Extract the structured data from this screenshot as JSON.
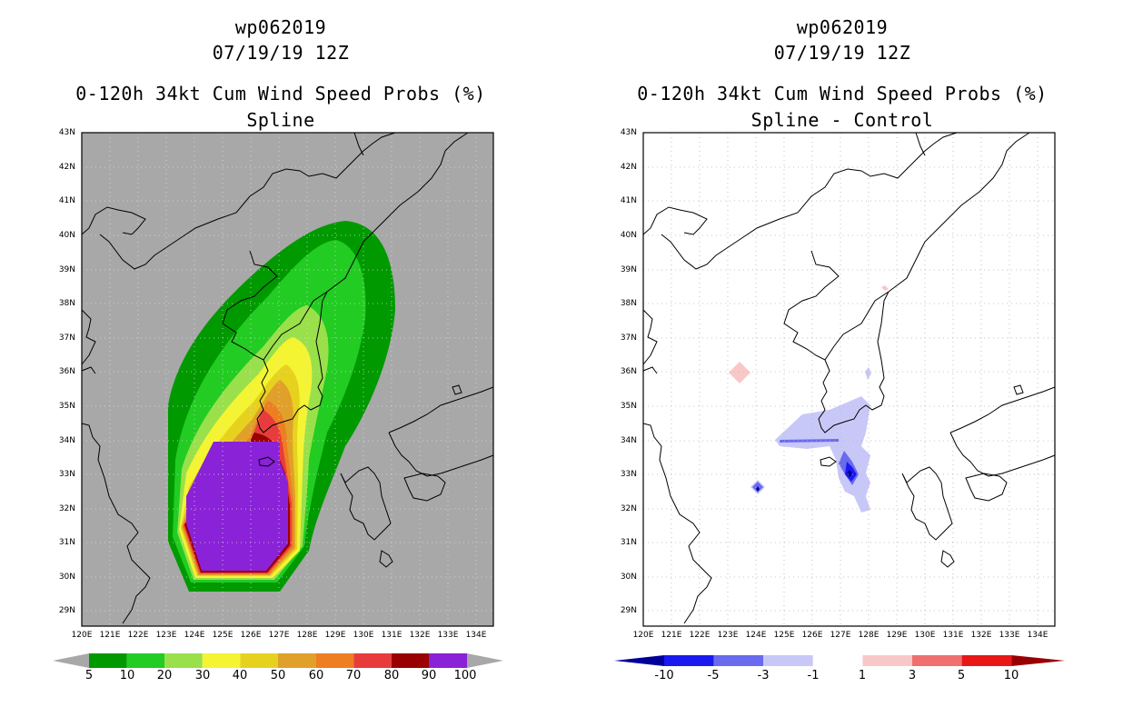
{
  "left": {
    "title_line1": "wp062019",
    "title_line2": "07/19/19 12Z",
    "title_line3": "0-120h 34kt Cum Wind Speed Probs (%)",
    "subtitle": "Spline",
    "colorbar_labels": [
      "5",
      "10",
      "20",
      "30",
      "40",
      "50",
      "60",
      "70",
      "80",
      "90",
      "100"
    ],
    "colorbar_colors": [
      "#009900",
      "#22cc22",
      "#99e04a",
      "#f4f433",
      "#e6d21e",
      "#e0a02a",
      "#ee7e22",
      "#e83c3c",
      "#990000",
      "#8a22d8"
    ],
    "background_color": "#a8a8a8"
  },
  "right": {
    "title_line1": "wp062019",
    "title_line2": "07/19/19 12Z",
    "title_line3": "0-120h 34kt Cum Wind Speed Probs (%)",
    "subtitle": "Spline - Control",
    "colorbar_labels": [
      "-10",
      "-5",
      "-3",
      "-1",
      "1",
      "3",
      "5",
      "10"
    ],
    "colorbar_colors": [
      "#000099",
      "#1919f0",
      "#6a6aee",
      "#c8c8f8",
      "#ffffff",
      "#f8c8c8",
      "#f07070",
      "#e81818",
      "#990000"
    ]
  },
  "axes": {
    "lat_labels": [
      "43N",
      "42N",
      "41N",
      "40N",
      "39N",
      "38N",
      "37N",
      "36N",
      "35N",
      "34N",
      "33N",
      "32N",
      "31N",
      "30N",
      "29N"
    ],
    "lon_labels": [
      "120E",
      "121E",
      "122E",
      "123E",
      "124E",
      "125E",
      "126E",
      "127E",
      "128E",
      "129E",
      "130E",
      "131E",
      "132E",
      "133E",
      "134E"
    ]
  }
}
